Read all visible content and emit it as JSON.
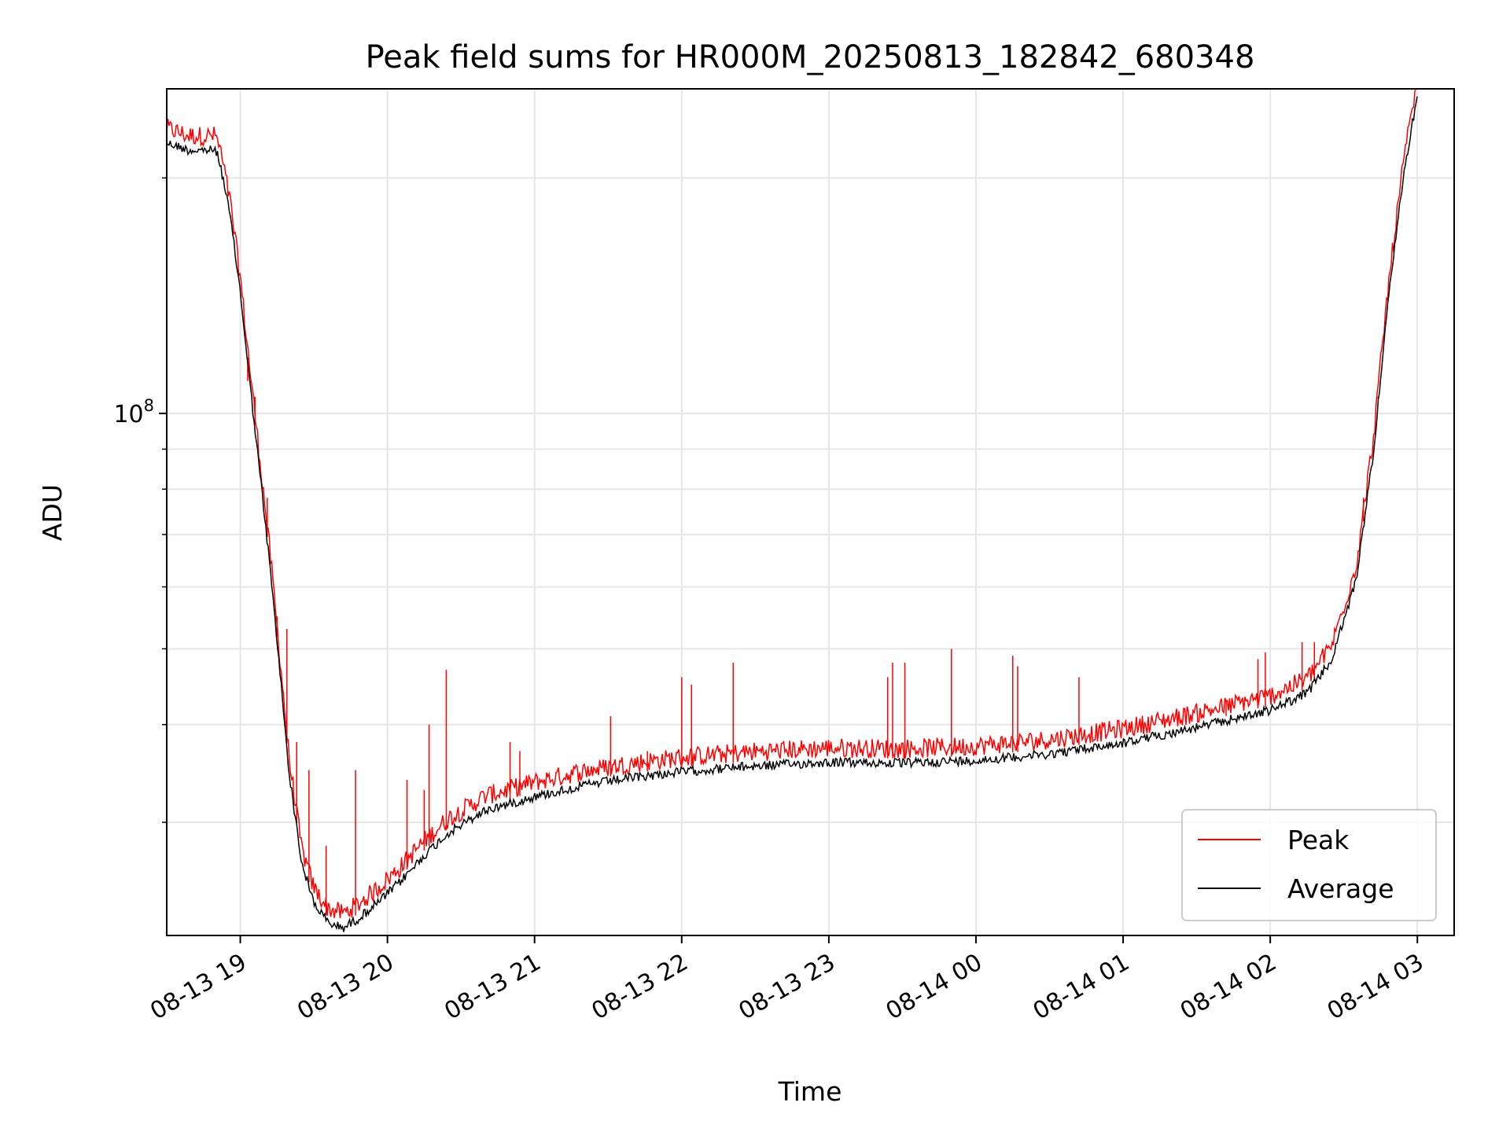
{
  "chart_data": {
    "type": "line",
    "title": "Peak field sums for HR000M_20250813_182842_680348",
    "xlabel": "Time",
    "ylabel": "ADU",
    "y_scale": "log",
    "grid": true,
    "legend_position": "lower-right",
    "xlim": [
      "2025-08-13 18:30",
      "2025-08-14 03:15"
    ],
    "ylim": [
      21500000,
      260000000
    ],
    "x_ticks": [
      {
        "value": "2025-08-13 19:00",
        "label": "08-13 19"
      },
      {
        "value": "2025-08-13 20:00",
        "label": "08-13 20"
      },
      {
        "value": "2025-08-13 21:00",
        "label": "08-13 21"
      },
      {
        "value": "2025-08-13 22:00",
        "label": "08-13 22"
      },
      {
        "value": "2025-08-13 23:00",
        "label": "08-13 23"
      },
      {
        "value": "2025-08-14 00:00",
        "label": "08-14 00"
      },
      {
        "value": "2025-08-14 01:00",
        "label": "08-14 01"
      },
      {
        "value": "2025-08-14 02:00",
        "label": "08-14 02"
      },
      {
        "value": "2025-08-14 03:00",
        "label": "08-14 03"
      }
    ],
    "y_ticks": [
      {
        "value": 100000000,
        "base": "10",
        "exponent": "8"
      }
    ],
    "series": [
      {
        "name": "Average",
        "color": "#000000",
        "points": [
          [
            "2025-08-13 18:30",
            225000000
          ],
          [
            "2025-08-13 18:39",
            220000000
          ],
          [
            "2025-08-13 18:50",
            220000000
          ],
          [
            "2025-08-13 18:52",
            210000000
          ],
          [
            "2025-08-13 18:56",
            180000000
          ],
          [
            "2025-08-13 19:00",
            145000000
          ],
          [
            "2025-08-13 19:04",
            110000000
          ],
          [
            "2025-08-13 19:08",
            85000000
          ],
          [
            "2025-08-13 19:12",
            65000000
          ],
          [
            "2025-08-13 19:16",
            48000000
          ],
          [
            "2025-08-13 19:20",
            35000000
          ],
          [
            "2025-08-13 19:25",
            27000000
          ],
          [
            "2025-08-13 19:30",
            24000000
          ],
          [
            "2025-08-13 19:36",
            22600000
          ],
          [
            "2025-08-13 19:42",
            22300000
          ],
          [
            "2025-08-13 19:48",
            22900000
          ],
          [
            "2025-08-13 19:56",
            24000000
          ],
          [
            "2025-08-13 20:05",
            25500000
          ],
          [
            "2025-08-13 20:15",
            27600000
          ],
          [
            "2025-08-13 20:25",
            29500000
          ],
          [
            "2025-08-13 20:40",
            31500000
          ],
          [
            "2025-08-13 21:00",
            32800000
          ],
          [
            "2025-08-13 21:20",
            33900000
          ],
          [
            "2025-08-13 21:40",
            34700000
          ],
          [
            "2025-08-13 22:00",
            35300000
          ],
          [
            "2025-08-13 22:30",
            35900000
          ],
          [
            "2025-08-13 23:00",
            36300000
          ],
          [
            "2025-08-13 23:30",
            36200000
          ],
          [
            "2025-08-14 00:00",
            36500000
          ],
          [
            "2025-08-14 00:30",
            37200000
          ],
          [
            "2025-08-14 01:00",
            38400000
          ],
          [
            "2025-08-14 01:30",
            40200000
          ],
          [
            "2025-08-14 02:00",
            42300000
          ],
          [
            "2025-08-14 02:15",
            44500000
          ],
          [
            "2025-08-14 02:25",
            49000000
          ],
          [
            "2025-08-14 02:35",
            62000000
          ],
          [
            "2025-08-14 02:42",
            90000000
          ],
          [
            "2025-08-14 02:48",
            140000000
          ],
          [
            "2025-08-14 02:54",
            200000000
          ],
          [
            "2025-08-14 03:00",
            260000000
          ]
        ]
      },
      {
        "name": "Peak",
        "color": "#ff0000",
        "spikes": [
          [
            "2025-08-13 19:03",
            110000000
          ],
          [
            "2025-08-13 19:06",
            105000000
          ],
          [
            "2025-08-13 19:11",
            78000000
          ],
          [
            "2025-08-13 19:15",
            55000000
          ],
          [
            "2025-08-13 19:19",
            53000000
          ],
          [
            "2025-08-13 19:23",
            38000000
          ],
          [
            "2025-08-13 19:28",
            35000000
          ],
          [
            "2025-08-13 19:35",
            28000000
          ],
          [
            "2025-08-13 19:47",
            35000000
          ],
          [
            "2025-08-13 20:08",
            34000000
          ],
          [
            "2025-08-13 20:15",
            33000000
          ],
          [
            "2025-08-13 20:17",
            40000000
          ],
          [
            "2025-08-13 20:24",
            47000000
          ],
          [
            "2025-08-13 20:50",
            38000000
          ],
          [
            "2025-08-13 20:54",
            37000000
          ],
          [
            "2025-08-13 21:31",
            41000000
          ],
          [
            "2025-08-13 21:46",
            37000000
          ],
          [
            "2025-08-13 22:00",
            46000000
          ],
          [
            "2025-08-13 22:04",
            45000000
          ],
          [
            "2025-08-13 22:21",
            48000000
          ],
          [
            "2025-08-13 23:24",
            46000000
          ],
          [
            "2025-08-13 23:26",
            48000000
          ],
          [
            "2025-08-13 23:31",
            48000000
          ],
          [
            "2025-08-13 23:50",
            50000000
          ],
          [
            "2025-08-14 00:15",
            49000000
          ],
          [
            "2025-08-14 00:17",
            47500000
          ],
          [
            "2025-08-14 00:42",
            46000000
          ],
          [
            "2025-08-14 01:42",
            43000000
          ],
          [
            "2025-08-14 01:55",
            48500000
          ],
          [
            "2025-08-14 01:58",
            49500000
          ],
          [
            "2025-08-14 02:13",
            51000000
          ],
          [
            "2025-08-14 02:18",
            51000000
          ],
          [
            "2025-08-14 02:38",
            78000000
          ],
          [
            "2025-08-14 02:44",
            105000000
          ]
        ]
      }
    ]
  }
}
